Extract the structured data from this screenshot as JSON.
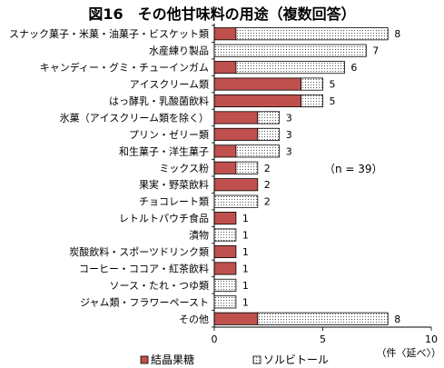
{
  "chart_data": {
    "type": "bar",
    "orientation": "horizontal",
    "stacked": true,
    "title": "図16　その他甘味料の用途（複数回答）",
    "categories": [
      "スナック菓子・米菓・油菓子・ビスケット類",
      "水産練り製品",
      "キャンディー・グミ・チューインガム",
      "アイスクリーム類",
      "はっ酵乳・乳酸菌飲料",
      "氷菓（アイスクリーム類を除く）",
      "プリン・ゼリー類",
      "和生菓子・洋生菓子",
      "ミックス粉",
      "果実・野菜飲料",
      "チョコレート類",
      "レトルトパウチ食品",
      "漬物",
      "炭酸飲料・スポーツドリンク類",
      "コーヒー・ココア・紅茶飲料",
      "ソース・たれ・つゆ類",
      "ジャム類・フラワーペースト",
      "その他"
    ],
    "series": [
      {
        "name": "結晶果糖",
        "color": "#c0504d",
        "pattern": "solid",
        "values": [
          1,
          0,
          1,
          4,
          4,
          2,
          2,
          1,
          1,
          2,
          0,
          1,
          0,
          1,
          1,
          0,
          0,
          2
        ]
      },
      {
        "name": "ソルビトール",
        "color": "#ffffff",
        "pattern": "dotted",
        "values": [
          7,
          7,
          5,
          1,
          1,
          1,
          1,
          2,
          1,
          0,
          2,
          0,
          1,
          0,
          0,
          1,
          1,
          6
        ]
      }
    ],
    "totals": [
      "8",
      "7",
      "6",
      "5",
      "5",
      "3",
      "3",
      "3",
      "2",
      "2",
      "2",
      "1",
      "1",
      "1",
      "1",
      "1",
      "1",
      "8"
    ],
    "xlim": [
      0,
      10
    ],
    "x_ticks": [
      "0",
      "5",
      "10"
    ],
    "x_unit_label": "（件〈延べ〉）",
    "annotation": "（n = 39）",
    "legend_position": "bottom",
    "grid": false
  }
}
